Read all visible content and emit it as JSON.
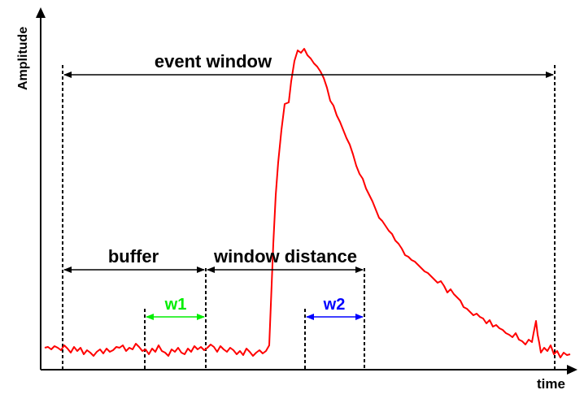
{
  "axes": {
    "y_label": "Amplitude",
    "x_label": "time"
  },
  "annotations": {
    "event_window": "event window",
    "buffer": "buffer",
    "window_distance": "window distance",
    "w1": "w1",
    "w2": "w2"
  },
  "colors": {
    "signal": "#ff0000",
    "w1": "#00ee00",
    "w2": "#0000ff",
    "axis": "#000000",
    "background": "#ffffff"
  },
  "icons": [
    "arrowhead",
    "dashed-marker-line"
  ]
}
